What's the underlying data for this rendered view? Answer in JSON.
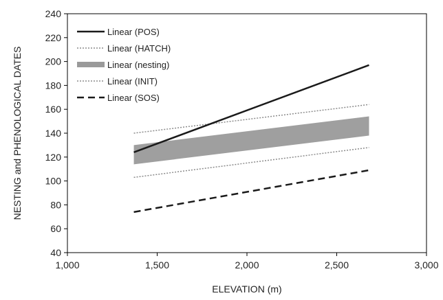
{
  "chart_data": {
    "type": "line",
    "title": "",
    "xlabel": "ELEVATION (m)",
    "ylabel": "NESTING and PHENOLOGICAL DATES",
    "xlim": [
      1000,
      3000
    ],
    "ylim": [
      40,
      240
    ],
    "x_ticks": [
      1000,
      1500,
      2000,
      2500,
      3000
    ],
    "x_tick_labels": [
      "1,000",
      "1,500",
      "2,000",
      "2,500",
      "3,000"
    ],
    "y_ticks": [
      40,
      60,
      80,
      100,
      120,
      140,
      160,
      180,
      200,
      220,
      240
    ],
    "y_tick_labels": [
      "40",
      "60",
      "80",
      "100",
      "120",
      "140",
      "160",
      "180",
      "200",
      "220",
      "240"
    ],
    "grid": false,
    "legend_position": "top-left",
    "series": [
      {
        "name": "Linear (POS)",
        "style": "solid",
        "color": "#1a1a1a",
        "x": [
          1370,
          2680
        ],
        "y": [
          124,
          197
        ]
      },
      {
        "name": "Linear (HATCH)",
        "style": "dotted",
        "color": "#8a8a8a",
        "x": [
          1370,
          2680
        ],
        "y": [
          140,
          164
        ]
      },
      {
        "name": "Linear (nesting)",
        "style": "band",
        "color": "#9a9a9a",
        "x": [
          1370,
          2680
        ],
        "y": [
          122,
          146
        ]
      },
      {
        "name": "Linear (INIT)",
        "style": "dotted",
        "color": "#8a8a8a",
        "x": [
          1370,
          2680
        ],
        "y": [
          103,
          128
        ]
      },
      {
        "name": "Linear (SOS)",
        "style": "dashed",
        "color": "#1a1a1a",
        "x": [
          1370,
          2680
        ],
        "y": [
          74,
          109
        ]
      }
    ]
  }
}
